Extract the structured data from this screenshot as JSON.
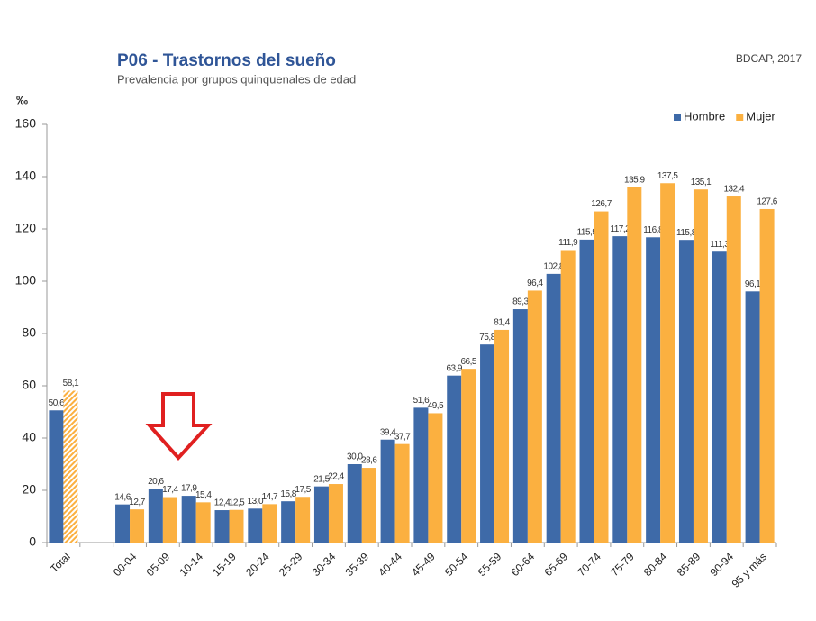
{
  "chart_data": {
    "type": "bar",
    "title": "P06 - Trastornos del sueño",
    "subtitle": "Prevalencia por grupos quinquenales de edad",
    "source": "BDCAP, 2017",
    "y_label": "‰",
    "categories": [
      "Total",
      null,
      "00-04",
      "05-09",
      "10-14",
      "15-19",
      "20-24",
      "25-29",
      "30-34",
      "35-39",
      "40-44",
      "45-49",
      "50-54",
      "55-59",
      "60-64",
      "65-69",
      "70-74",
      "75-79",
      "80-84",
      "85-89",
      "90-94",
      "95 y más"
    ],
    "series": [
      {
        "name": "Hombre",
        "color": "#3e6aa8",
        "values": [
          50.6,
          null,
          14.6,
          20.6,
          17.9,
          12.4,
          13.0,
          15.8,
          21.5,
          30.0,
          39.4,
          51.6,
          63.9,
          75.8,
          89.3,
          102.8,
          115.9,
          117.2,
          116.8,
          115.8,
          111.3,
          96.1
        ],
        "value_labels": [
          "50,6",
          null,
          "14,6",
          "20,6",
          "17,9",
          "12,4",
          "13,0",
          "15,8",
          "21,5",
          "30,0",
          "39,4",
          "51,6",
          "63,9",
          "75,8",
          "89,3",
          "102,8",
          "115,9",
          "117,2",
          "116,8",
          "115,8",
          "111,3",
          "96,1"
        ]
      },
      {
        "name": "Mujer",
        "color": "#fbb040",
        "values": [
          58.1,
          null,
          12.7,
          17.4,
          15.4,
          12.5,
          14.7,
          17.5,
          22.4,
          28.6,
          37.7,
          49.5,
          66.5,
          81.4,
          96.4,
          111.9,
          126.7,
          135.9,
          137.5,
          135.1,
          132.4,
          127.6
        ],
        "value_labels": [
          "58,1",
          null,
          "12,7",
          "17,4",
          "15,4",
          "12,5",
          "14,7",
          "17,5",
          "22,4",
          "28,6",
          "37,7",
          "49,5",
          "66,5",
          "81,4",
          "96,4",
          "111,9",
          "126,7",
          "135,9",
          "137,5",
          "135,1",
          "132,4",
          "127,6"
        ]
      }
    ],
    "ylim": [
      0,
      160
    ],
    "yticks": [
      0,
      20,
      40,
      60,
      80,
      100,
      120,
      140,
      160
    ],
    "grid": false,
    "legend": "top-right"
  }
}
